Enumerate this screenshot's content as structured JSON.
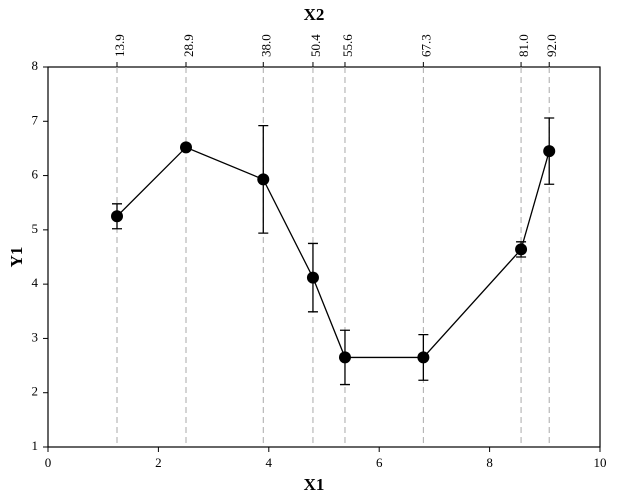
{
  "chart_data": {
    "type": "line",
    "xlabel": "X1",
    "ylabel": "Y1",
    "x2label": "X2",
    "x": [
      1.25,
      2.5,
      3.9,
      4.8,
      5.38,
      6.8,
      8.57,
      9.08
    ],
    "x2_labels": [
      "13.9",
      "28.9",
      "38.0",
      "50.4",
      "55.6",
      "67.3",
      "81.0",
      "92.0"
    ],
    "series": [
      {
        "color": "#000000",
        "values": [
          5.25,
          6.52,
          5.93,
          4.12,
          2.65,
          2.65,
          4.64,
          6.45
        ],
        "errors": [
          0.23,
          0.05,
          0.99,
          0.63,
          0.5,
          0.42,
          0.14,
          0.61
        ]
      }
    ],
    "xlim": [
      0,
      10
    ],
    "xticks": [
      0,
      2,
      4,
      6,
      8,
      10
    ],
    "ylim": [
      1,
      8
    ],
    "yticks": [
      1,
      2,
      3,
      4,
      5,
      6,
      7,
      8
    ]
  }
}
